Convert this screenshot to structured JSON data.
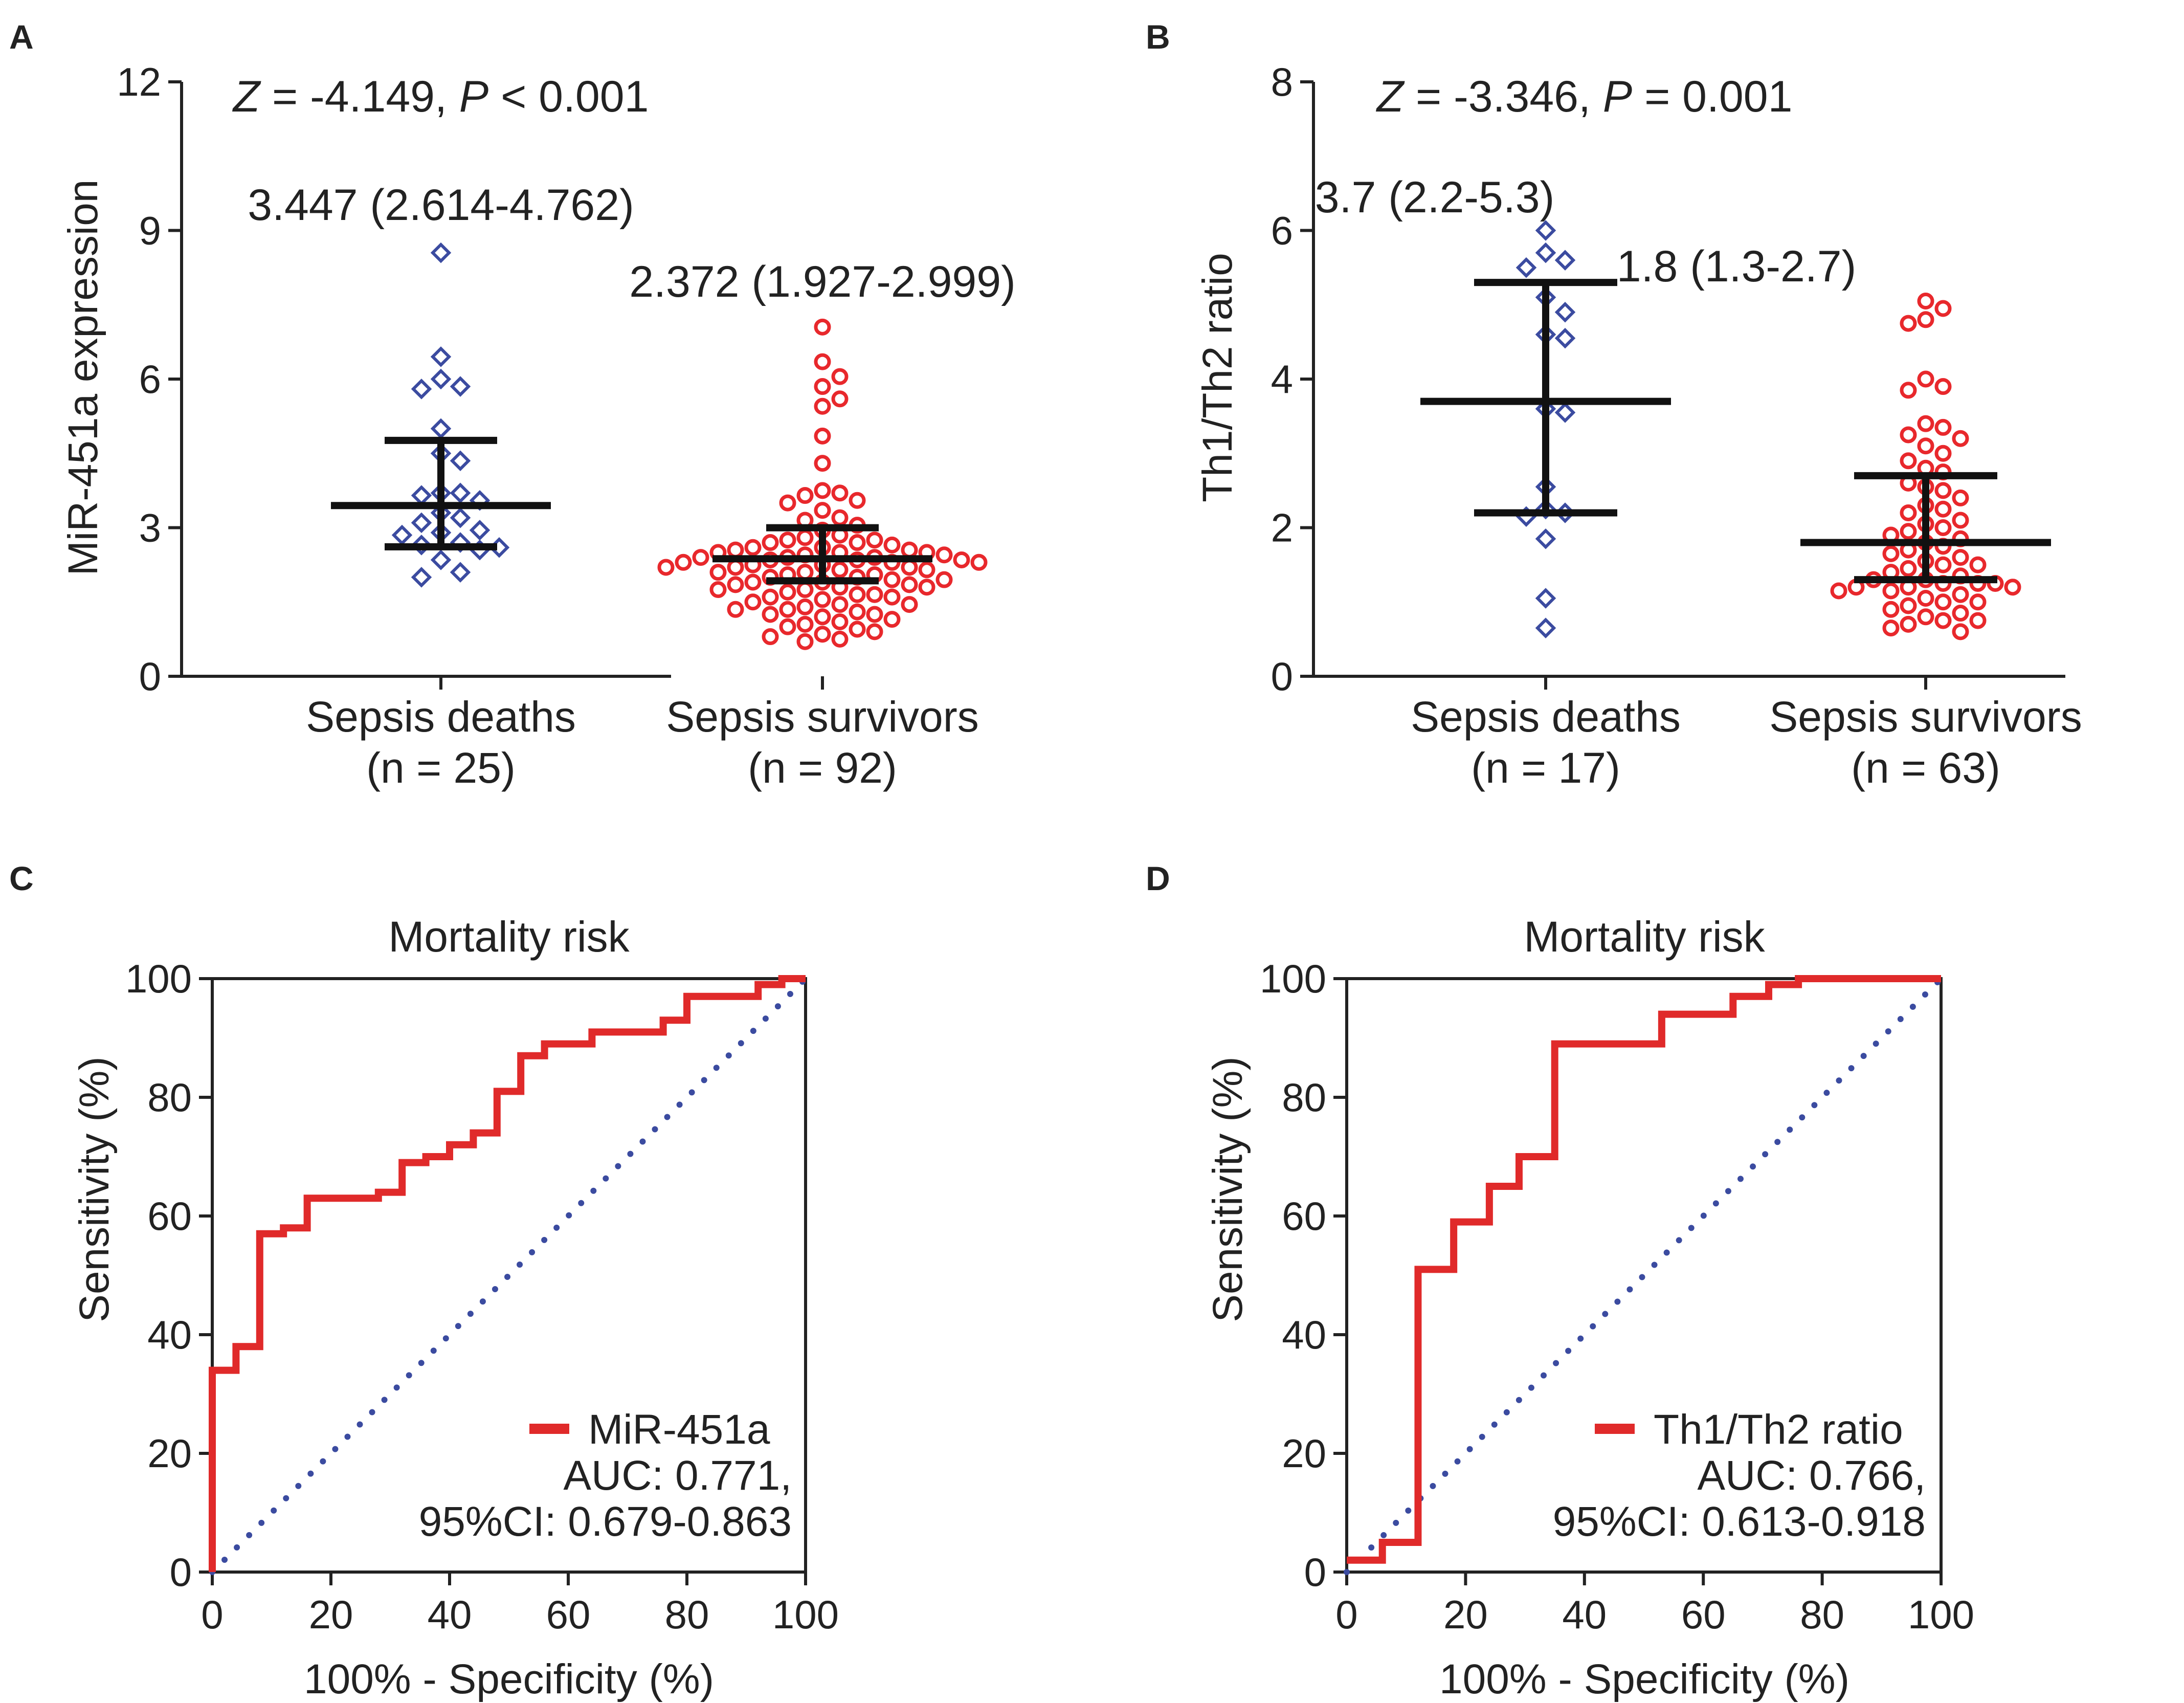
{
  "colors": {
    "deaths": "#3b4ba0",
    "survivors": "#e8282c",
    "axis": "#222222",
    "summary": "#111111",
    "roc": "#e02a2a",
    "diagonal": "#3b4ba0"
  },
  "chart_data": [
    {
      "panel": "A",
      "type": "scatter",
      "subtype": "dot-plot-with-median-IQR",
      "annotation": {
        "z_label": "Z",
        "z_text": " = -4.149, ",
        "p_label": "P",
        "p_text": " < 0.001"
      },
      "ylabel": "MiR-451a expression",
      "ylim": [
        0,
        12
      ],
      "yticks": [
        0,
        3,
        6,
        9,
        12
      ],
      "ytick_labels": [
        "0",
        "3",
        "6",
        "9",
        "12"
      ],
      "groups": [
        {
          "name": "Sepsis deaths",
          "n_label": "(n = 25)",
          "median": 3.447,
          "q1": 2.614,
          "q3": 4.762,
          "summary_text": "3.447 (2.614-4.762)",
          "marker": "diamond",
          "values": [
            8.55,
            6.45,
            6.0,
            5.85,
            5.8,
            5.0,
            4.5,
            4.35,
            3.7,
            3.7,
            3.65,
            3.55,
            3.3,
            3.2,
            3.1,
            2.95,
            2.9,
            2.85,
            2.7,
            2.65,
            2.6,
            2.55,
            2.35,
            2.1,
            2.0
          ]
        },
        {
          "name": "Sepsis survivors",
          "n_label": "(n = 92)",
          "median": 2.372,
          "q1": 1.927,
          "q3": 2.999,
          "summary_text": "2.372 (1.927-2.999)",
          "marker": "circle",
          "values": [
            7.05,
            6.35,
            6.05,
            5.85,
            5.6,
            5.45,
            4.85,
            4.3,
            3.75,
            3.7,
            3.65,
            3.55,
            3.5,
            3.35,
            3.2,
            3.15,
            3.05,
            2.95,
            2.85,
            2.8,
            2.75,
            2.75,
            2.7,
            2.7,
            2.65,
            2.6,
            2.6,
            2.55,
            2.55,
            2.5,
            2.5,
            2.5,
            2.45,
            2.45,
            2.4,
            2.4,
            2.4,
            2.35,
            2.35,
            2.35,
            2.3,
            2.3,
            2.3,
            2.25,
            2.25,
            2.2,
            2.2,
            2.2,
            2.15,
            2.15,
            2.1,
            2.1,
            2.05,
            2.05,
            2.0,
            2.0,
            1.95,
            1.95,
            1.9,
            1.9,
            1.85,
            1.85,
            1.8,
            1.8,
            1.75,
            1.75,
            1.7,
            1.65,
            1.65,
            1.6,
            1.6,
            1.55,
            1.5,
            1.45,
            1.45,
            1.4,
            1.35,
            1.35,
            1.3,
            1.25,
            1.25,
            1.2,
            1.15,
            1.1,
            1.05,
            1.0,
            0.95,
            0.9,
            0.85,
            0.8,
            0.75,
            0.7
          ]
        }
      ]
    },
    {
      "panel": "B",
      "type": "scatter",
      "subtype": "dot-plot-with-median-IQR",
      "annotation": {
        "z_label": "Z",
        "z_text": " = -3.346, ",
        "p_label": "P",
        "p_text": " = 0.001"
      },
      "ylabel": "Th1/Th2 ratio",
      "ylim": [
        0,
        8
      ],
      "yticks": [
        0,
        2,
        4,
        6,
        8
      ],
      "ytick_labels": [
        "0",
        "2",
        "4",
        "6",
        "8"
      ],
      "groups": [
        {
          "name": "Sepsis deaths",
          "n_label": "(n = 17)",
          "median": 3.7,
          "q1": 2.2,
          "q3": 5.3,
          "summary_text": "3.7 (2.2-5.3)",
          "marker": "diamond",
          "values": [
            6.0,
            5.7,
            5.6,
            5.5,
            5.1,
            4.9,
            4.6,
            4.55,
            3.6,
            3.55,
            2.55,
            2.25,
            2.2,
            2.15,
            1.85,
            1.05,
            0.65
          ]
        },
        {
          "name": "Sepsis survivors",
          "n_label": "(n = 63)",
          "median": 1.8,
          "q1": 1.3,
          "q3": 2.7,
          "summary_text": "1.8 (1.3-2.7)",
          "marker": "circle",
          "values": [
            5.05,
            4.95,
            4.8,
            4.75,
            4.0,
            3.9,
            3.85,
            3.4,
            3.35,
            3.25,
            3.2,
            3.1,
            3.0,
            2.9,
            2.8,
            2.75,
            2.6,
            2.55,
            2.5,
            2.4,
            2.3,
            2.25,
            2.2,
            2.1,
            2.05,
            2.0,
            1.95,
            1.9,
            1.85,
            1.8,
            1.75,
            1.7,
            1.65,
            1.6,
            1.55,
            1.5,
            1.5,
            1.45,
            1.4,
            1.35,
            1.3,
            1.3,
            1.25,
            1.25,
            1.25,
            1.2,
            1.2,
            1.2,
            1.15,
            1.15,
            1.1,
            1.05,
            1.0,
            1.0,
            0.95,
            0.9,
            0.85,
            0.8,
            0.75,
            0.75,
            0.7,
            0.65,
            0.6
          ]
        }
      ]
    },
    {
      "panel": "C",
      "type": "line",
      "subtype": "roc",
      "title": "Mortality risk",
      "xlabel": "100% - Specificity (%)",
      "ylabel": "Sensitivity (%)",
      "xlim": [
        0,
        100
      ],
      "ylim": [
        0,
        100
      ],
      "xticks": [
        0,
        20,
        40,
        60,
        80,
        100
      ],
      "yticks": [
        0,
        20,
        40,
        60,
        80,
        100
      ],
      "tick_labels": [
        "0",
        "20",
        "40",
        "60",
        "80",
        "100"
      ],
      "series": [
        {
          "name": "MiR-451a",
          "auc_text": "AUC: 0.771,",
          "ci_text": "95%CI: 0.679-0.863",
          "x": [
            0,
            0,
            4,
            4,
            8,
            8,
            12,
            12,
            16,
            16,
            28,
            28,
            32,
            32,
            36,
            36,
            40,
            40,
            44,
            44,
            48,
            48,
            52,
            52,
            56,
            56,
            64,
            64,
            76,
            76,
            80,
            80,
            92,
            92,
            96,
            96,
            100
          ],
          "y": [
            0,
            34,
            34,
            38,
            38,
            57,
            57,
            58,
            58,
            63,
            63,
            64,
            64,
            69,
            69,
            70,
            70,
            72,
            72,
            74,
            74,
            81,
            81,
            87,
            87,
            89,
            89,
            91,
            91,
            93,
            93,
            97,
            97,
            99,
            99,
            100,
            100
          ]
        }
      ],
      "diagonal": {
        "x": [
          0,
          100
        ],
        "y": [
          0,
          100
        ],
        "style": "dotted"
      }
    },
    {
      "panel": "D",
      "type": "line",
      "subtype": "roc",
      "title": "Mortality risk",
      "xlabel": "100% - Specificity (%)",
      "ylabel": "Sensitivity (%)",
      "xlim": [
        0,
        100
      ],
      "ylim": [
        0,
        100
      ],
      "xticks": [
        0,
        20,
        40,
        60,
        80,
        100
      ],
      "yticks": [
        0,
        20,
        40,
        60,
        80,
        100
      ],
      "tick_labels": [
        "0",
        "20",
        "40",
        "60",
        "80",
        "100"
      ],
      "series": [
        {
          "name": "Th1/Th2 ratio",
          "auc_text": "AUC: 0.766,",
          "ci_text": "95%CI: 0.613-0.918",
          "x": [
            0,
            6,
            6,
            12,
            12,
            18,
            18,
            24,
            24,
            29,
            29,
            35,
            35,
            53,
            53,
            65,
            65,
            71,
            71,
            76,
            76,
            100
          ],
          "y": [
            2,
            2,
            5,
            5,
            51,
            51,
            59,
            59,
            65,
            65,
            70,
            70,
            89,
            89,
            94,
            94,
            97,
            97,
            99,
            99,
            100,
            100
          ]
        }
      ],
      "diagonal": {
        "x": [
          0,
          100
        ],
        "y": [
          0,
          100
        ],
        "style": "dotted"
      }
    }
  ]
}
